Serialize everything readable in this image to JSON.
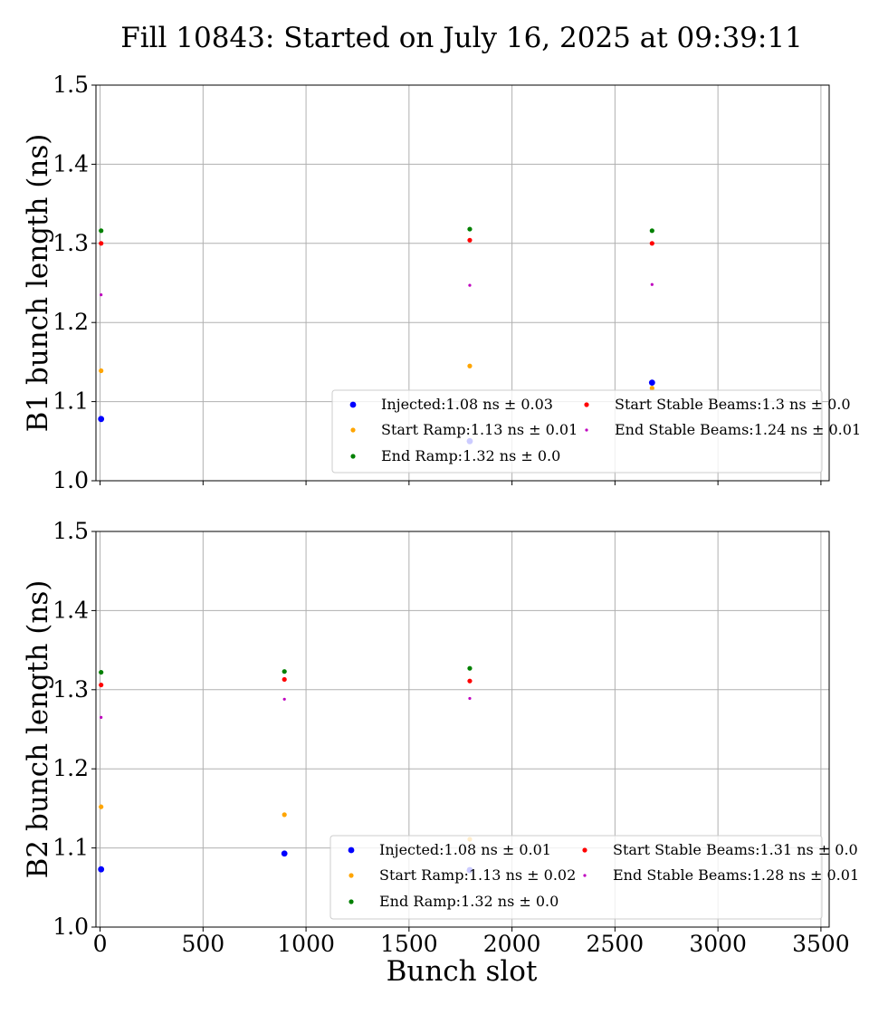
{
  "figure": {
    "title": "Fill 10843: Started on July 16, 2025 at 09:39:11",
    "xlabel": "Bunch slot"
  },
  "series_styles": {
    "Injected": {
      "color": "#0000ff",
      "size": "large"
    },
    "Start Ramp": {
      "color": "#ffa500",
      "size": "medium"
    },
    "End Ramp": {
      "color": "#008000",
      "size": "medium"
    },
    "Start Stable Beams": {
      "color": "#ff0000",
      "size": "medium"
    },
    "End Stable Beams": {
      "color": "#bf00bf",
      "size": "small"
    }
  },
  "chart_data": [
    {
      "type": "scatter",
      "ylabel": "B1 bunch length (ns)",
      "xlabel": "",
      "xlim": [
        -20,
        3540
      ],
      "ylim": [
        1.0,
        1.5
      ],
      "xticks": [
        0,
        500,
        1000,
        1500,
        2000,
        2500,
        3000,
        3500
      ],
      "xtick_labels_shown": false,
      "yticks": [
        1.0,
        1.1,
        1.2,
        1.3,
        1.4,
        1.5
      ],
      "ytick_labels": [
        "1.0",
        "1.1",
        "1.2",
        "1.3",
        "1.4",
        "1.5"
      ],
      "grid": true,
      "legend_position": "lower right",
      "series": [
        {
          "name": "Injected",
          "legend": "Injected:1.08 ns ± 0.03",
          "x": [
            5,
            1795,
            2680
          ],
          "y": [
            1.078,
            1.05,
            1.124
          ]
        },
        {
          "name": "Start Ramp",
          "legend": "Start Ramp:1.13 ns ± 0.01",
          "x": [
            5,
            1795,
            2680
          ],
          "y": [
            1.139,
            1.145,
            1.117
          ]
        },
        {
          "name": "End Ramp",
          "legend": "End Ramp:1.32 ns ± 0.0",
          "x": [
            5,
            1795,
            2680
          ],
          "y": [
            1.316,
            1.318,
            1.316
          ]
        },
        {
          "name": "Start Stable Beams",
          "legend": "Start Stable Beams:1.3 ns ± 0.0",
          "x": [
            5,
            1795,
            2680
          ],
          "y": [
            1.3,
            1.304,
            1.3
          ]
        },
        {
          "name": "End Stable Beams",
          "legend": "End Stable Beams:1.24 ns ± 0.01",
          "x": [
            5,
            1795,
            2680
          ],
          "y": [
            1.235,
            1.247,
            1.248
          ]
        }
      ]
    },
    {
      "type": "scatter",
      "ylabel": "B2 bunch length (ns)",
      "xlabel": "Bunch slot",
      "xlim": [
        -20,
        3540
      ],
      "ylim": [
        1.0,
        1.5
      ],
      "xticks": [
        0,
        500,
        1000,
        1500,
        2000,
        2500,
        3000,
        3500
      ],
      "xtick_labels": [
        "0",
        "500",
        "1000",
        "1500",
        "2000",
        "2500",
        "3000",
        "3500"
      ],
      "yticks": [
        1.0,
        1.1,
        1.2,
        1.3,
        1.4,
        1.5
      ],
      "ytick_labels": [
        "1.0",
        "1.1",
        "1.2",
        "1.3",
        "1.4",
        "1.5"
      ],
      "grid": true,
      "legend_position": "lower right",
      "series": [
        {
          "name": "Injected",
          "legend": "Injected:1.08 ns ± 0.01",
          "x": [
            5,
            895,
            1795
          ],
          "y": [
            1.073,
            1.093,
            1.072
          ]
        },
        {
          "name": "Start Ramp",
          "legend": "Start Ramp:1.13 ns ± 0.02",
          "x": [
            5,
            895,
            1795
          ],
          "y": [
            1.152,
            1.142,
            1.111
          ]
        },
        {
          "name": "End Ramp",
          "legend": "End Ramp:1.32 ns ± 0.0",
          "x": [
            5,
            895,
            1795
          ],
          "y": [
            1.322,
            1.323,
            1.327
          ]
        },
        {
          "name": "Start Stable Beams",
          "legend": "Start Stable Beams:1.31 ns ± 0.0",
          "x": [
            5,
            895,
            1795
          ],
          "y": [
            1.306,
            1.313,
            1.311
          ]
        },
        {
          "name": "End Stable Beams",
          "legend": "End Stable Beams:1.28 ns ± 0.01",
          "x": [
            5,
            895,
            1795
          ],
          "y": [
            1.265,
            1.288,
            1.289
          ]
        }
      ]
    }
  ]
}
